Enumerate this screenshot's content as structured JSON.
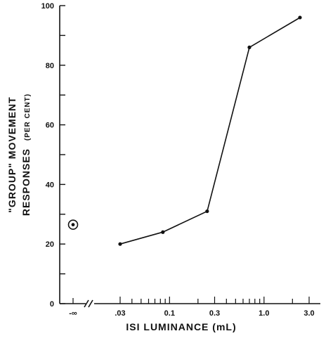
{
  "chart_data": {
    "type": "line",
    "xlabel": "ISI LUMINANCE (mL)",
    "ylabel_line1_main": "\"GROUP\" MOVEMENT",
    "ylabel_line2_main": "RESPONSES",
    "ylabel_line2_unit": "(PER CENT)",
    "x_scale": "log",
    "ylim": [
      0,
      100
    ],
    "y_ticks": [
      "0",
      "20",
      "40",
      "60",
      "80",
      "100"
    ],
    "x_ticks": [
      {
        "label": ".03",
        "value": 0.03
      },
      {
        "label": "0.1",
        "value": 0.1
      },
      {
        "label": "0.3",
        "value": 0.3
      },
      {
        "label": "1.0",
        "value": 1.0
      },
      {
        "label": "3.0",
        "value": 3.0
      }
    ],
    "x_break_label": "-∞",
    "series": [
      {
        "points": [
          {
            "x": 0.03,
            "y": 20
          },
          {
            "x": 0.085,
            "y": 24
          },
          {
            "x": 0.25,
            "y": 31
          },
          {
            "x": 0.7,
            "y": 86
          },
          {
            "x": 2.4,
            "y": 96
          }
        ]
      }
    ],
    "baseline_point": {
      "x_label": "-∞",
      "y": 26.5
    }
  }
}
